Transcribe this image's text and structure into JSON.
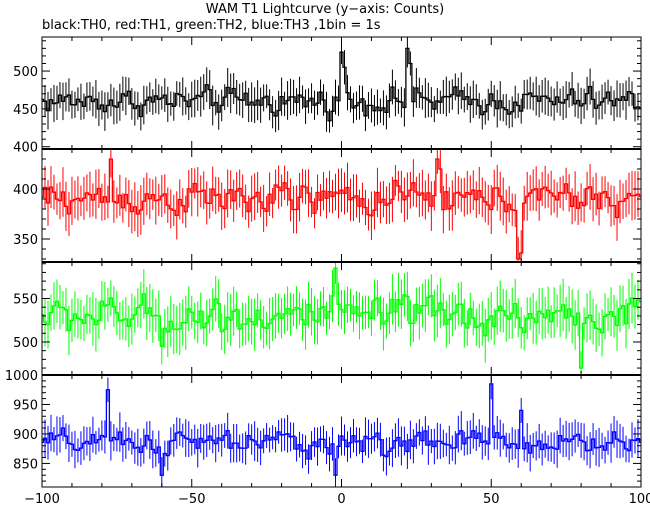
{
  "title": "WAM T1 Lightcurve (y−axis: Counts)",
  "subtitle": "black:TH0, red:TH1, green:TH2, blue:TH3 ,1bin = 1s",
  "chart_data": [
    {
      "type": "line",
      "series": [
        {
          "name": "TH0",
          "color": "#000000",
          "mean": 460,
          "spread": 18,
          "err": 22,
          "spikes": [
            [
              0,
              525
            ],
            [
              1,
              505
            ],
            [
              22,
              530
            ],
            [
              23,
              510
            ]
          ]
        }
      ],
      "ylim": [
        397,
        545
      ],
      "yticks": [
        "400",
        "450",
        "500"
      ],
      "xlim": [
        -100,
        100
      ],
      "grid": false
    },
    {
      "type": "line",
      "series": [
        {
          "name": "TH1",
          "color": "#ff0000",
          "mean": 390,
          "spread": 17,
          "err": 21,
          "spikes": [
            [
              -77,
              430
            ],
            [
              32,
              430
            ],
            [
              33,
              420
            ],
            [
              59,
              330
            ],
            [
              60,
              336
            ]
          ]
        }
      ],
      "ylim": [
        327,
        440
      ],
      "yticks": [
        "350",
        "400"
      ],
      "xlim": [
        -100,
        100
      ],
      "grid": false
    },
    {
      "type": "line",
      "series": [
        {
          "name": "TH2",
          "color": "#00ff00",
          "mean": 530,
          "spread": 22,
          "err": 26,
          "spikes": [
            [
              -60,
              495
            ],
            [
              -2,
              585
            ],
            [
              80,
              470
            ]
          ]
        }
      ],
      "ylim": [
        462,
        592
      ],
      "yticks": [
        "500",
        "550"
      ],
      "xlim": [
        -100,
        100
      ],
      "grid": false
    },
    {
      "type": "line",
      "series": [
        {
          "name": "TH3",
          "color": "#0000ff",
          "mean": 885,
          "spread": 22,
          "err": 28,
          "spikes": [
            [
              -78,
              975
            ],
            [
              -2,
              830
            ],
            [
              50,
              985
            ],
            [
              60,
              940
            ],
            [
              -60,
              830
            ]
          ]
        }
      ],
      "ylim": [
        810,
        1000
      ],
      "yticks": [
        "850",
        "900",
        "950",
        "1000"
      ],
      "xlim": [
        -100,
        100
      ],
      "grid": false
    }
  ],
  "xticks": [
    "−100",
    "−50",
    "0",
    "50",
    "100"
  ],
  "xtick_values": [
    -100,
    -50,
    0,
    50,
    100
  ]
}
